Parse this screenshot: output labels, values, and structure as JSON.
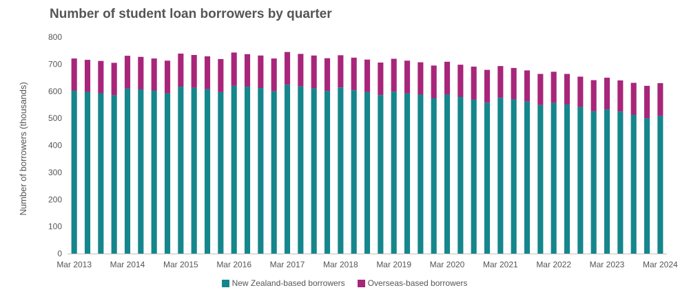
{
  "colors": {
    "nz": "#15868C",
    "overseas": "#A8267A",
    "text": "#555555",
    "axis": "#BFBFBF"
  },
  "chart_data": {
    "type": "bar",
    "stacked": true,
    "title": "Number of student loan borrowers by quarter",
    "xlabel": "",
    "ylabel": "Number of borrowers (thousands)",
    "ylim": [
      0,
      800
    ],
    "yticks": [
      0,
      100,
      200,
      300,
      400,
      500,
      600,
      700,
      800
    ],
    "xtick_labels": [
      "Mar 2013",
      "Mar 2014",
      "Mar 2015",
      "Mar 2016",
      "Mar 2017",
      "Mar 2018",
      "Mar 2019",
      "Mar 2020",
      "Mar 2021",
      "Mar 2022",
      "Mar 2023",
      "Mar 2024"
    ],
    "xtick_every": 4,
    "categories": [
      "Mar 2013",
      "Jun 2013",
      "Sep 2013",
      "Dec 2013",
      "Mar 2014",
      "Jun 2014",
      "Sep 2014",
      "Dec 2014",
      "Mar 2015",
      "Jun 2015",
      "Sep 2015",
      "Dec 2015",
      "Mar 2016",
      "Jun 2016",
      "Sep 2016",
      "Dec 2016",
      "Mar 2017",
      "Jun 2017",
      "Sep 2017",
      "Dec 2017",
      "Mar 2018",
      "Jun 2018",
      "Sep 2018",
      "Dec 2018",
      "Mar 2019",
      "Jun 2019",
      "Sep 2019",
      "Dec 2019",
      "Mar 2020",
      "Jun 2020",
      "Sep 2020",
      "Dec 2020",
      "Mar 2021",
      "Jun 2021",
      "Sep 2021",
      "Dec 2021",
      "Mar 2022",
      "Jun 2022",
      "Sep 2022",
      "Dec 2022",
      "Mar 2023",
      "Jun 2023",
      "Sep 2023",
      "Dec 2023",
      "Mar 2024"
    ],
    "series": [
      {
        "name": "New Zealand-based borrowers",
        "values": [
          602,
          598,
          593,
          585,
          610,
          607,
          602,
          592,
          617,
          613,
          608,
          597,
          620,
          617,
          612,
          600,
          624,
          618,
          611,
          601,
          614,
          604,
          597,
          586,
          599,
          592,
          588,
          574,
          588,
          579,
          569,
          558,
          576,
          570,
          562,
          549,
          557,
          551,
          542,
          526,
          533,
          525,
          513,
          500,
          509
        ]
      },
      {
        "name": "Overseas-based borrowers",
        "values": [
          119,
          118,
          119,
          120,
          121,
          120,
          119,
          121,
          122,
          121,
          121,
          122,
          123,
          120,
          120,
          121,
          121,
          120,
          121,
          121,
          119,
          120,
          120,
          120,
          121,
          121,
          119,
          121,
          121,
          119,
          122,
          121,
          117,
          116,
          115,
          115,
          115,
          113,
          112,
          115,
          117,
          115,
          118,
          120,
          121
        ]
      }
    ],
    "legend_position": "bottom-center"
  }
}
